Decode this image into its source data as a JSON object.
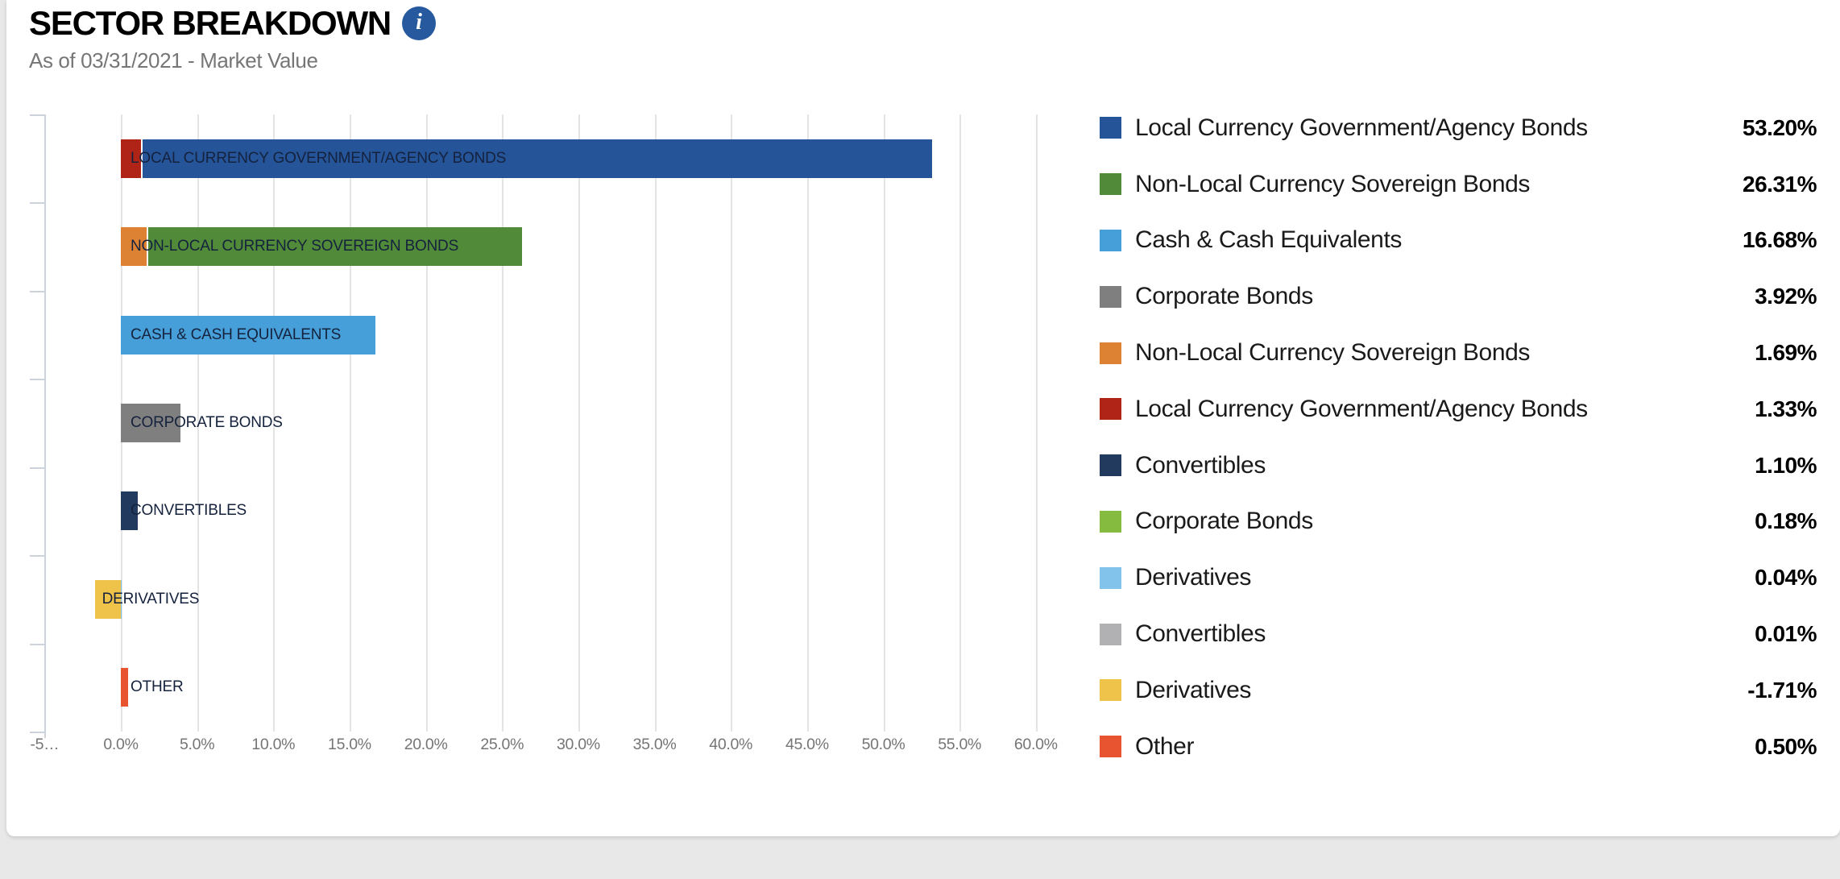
{
  "page": {
    "background_color": "#e8e8e8",
    "card_background_color": "#ffffff"
  },
  "header": {
    "title": "SECTOR BREAKDOWN",
    "subtitle": "As of 03/31/2021 - Market Value",
    "info_icon_glyph": "i",
    "info_icon_color": "#27599f"
  },
  "chart_data": {
    "type": "bar",
    "orientation": "horizontal",
    "value_unit": "%",
    "grid": true,
    "legend_position": "right",
    "axis": {
      "min": -5,
      "max": 60,
      "tick_step": 5,
      "ticks": [
        {
          "label": "-5…",
          "value": -5
        },
        {
          "label": "0.0%",
          "value": 0
        },
        {
          "label": "5.0%",
          "value": 5
        },
        {
          "label": "10.0%",
          "value": 10
        },
        {
          "label": "15.0%",
          "value": 15
        },
        {
          "label": "20.0%",
          "value": 20
        },
        {
          "label": "25.0%",
          "value": 25
        },
        {
          "label": "30.0%",
          "value": 30
        },
        {
          "label": "35.0%",
          "value": 35
        },
        {
          "label": "40.0%",
          "value": 40
        },
        {
          "label": "45.0%",
          "value": 45
        },
        {
          "label": "50.0%",
          "value": 50
        },
        {
          "label": "55.0%",
          "value": 55
        },
        {
          "label": "60.0%",
          "value": 60
        }
      ]
    },
    "rows": [
      {
        "label": "LOCAL CURRENCY GOVERNMENT/AGENCY BONDS",
        "segments": [
          {
            "name": "Local Currency Government/Agency Bonds",
            "value": 1.33,
            "color": "#b02418"
          },
          {
            "name": "Local Currency Government/Agency Bonds",
            "value": 53.2,
            "color": "#255499"
          }
        ]
      },
      {
        "label": "NON-LOCAL CURRENCY SOVEREIGN BONDS",
        "segments": [
          {
            "name": "Non-Local Currency Sovereign Bonds",
            "value": 1.69,
            "color": "#dd8233"
          },
          {
            "name": "Non-Local Currency Sovereign Bonds",
            "value": 26.31,
            "color": "#518a38"
          }
        ]
      },
      {
        "label": "CASH & CASH EQUIVALENTS",
        "segments": [
          {
            "name": "Cash & Cash Equivalents",
            "value": 16.68,
            "color": "#469fd8"
          }
        ]
      },
      {
        "label": "CORPORATE BONDS",
        "segments": [
          {
            "name": "Corporate Bonds",
            "value": 3.92,
            "color": "#7f7f7f"
          },
          {
            "name": "Corporate Bonds",
            "value": 0.18,
            "color": "#85bc40"
          }
        ]
      },
      {
        "label": "CONVERTIBLES",
        "segments": [
          {
            "name": "Convertibles",
            "value": 1.1,
            "color": "#223a5e"
          },
          {
            "name": "Convertibles",
            "value": 0.01,
            "color": "#b1b1b4"
          }
        ]
      },
      {
        "label": "DERIVATIVES",
        "segments": [
          {
            "name": "Derivatives",
            "value": -1.71,
            "color": "#efc24a"
          },
          {
            "name": "Derivatives",
            "value": 0.04,
            "color": "#82c3eb"
          }
        ]
      },
      {
        "label": "OTHER",
        "segments": [
          {
            "name": "Other",
            "value": 0.5,
            "color": "#e95430"
          }
        ]
      }
    ],
    "legend": [
      {
        "label": "Local Currency Government/Agency Bonds",
        "value": "53.20%",
        "color": "#255499"
      },
      {
        "label": "Non-Local Currency Sovereign Bonds",
        "value": "26.31%",
        "color": "#518a38"
      },
      {
        "label": "Cash & Cash Equivalents",
        "value": "16.68%",
        "color": "#469fd8"
      },
      {
        "label": "Corporate Bonds",
        "value": "3.92%",
        "color": "#7f7f7f"
      },
      {
        "label": "Non-Local Currency Sovereign Bonds",
        "value": "1.69%",
        "color": "#dd8233"
      },
      {
        "label": "Local Currency Government/Agency Bonds",
        "value": "1.33%",
        "color": "#b02418"
      },
      {
        "label": "Convertibles",
        "value": "1.10%",
        "color": "#223a5e"
      },
      {
        "label": "Corporate Bonds",
        "value": "0.18%",
        "color": "#85bc40"
      },
      {
        "label": "Derivatives",
        "value": "0.04%",
        "color": "#82c3eb"
      },
      {
        "label": "Convertibles",
        "value": "0.01%",
        "color": "#b1b1b4"
      },
      {
        "label": "Derivatives",
        "value": "-1.71%",
        "color": "#efc24a"
      },
      {
        "label": "Other",
        "value": "0.50%",
        "color": "#e95430"
      }
    ]
  }
}
